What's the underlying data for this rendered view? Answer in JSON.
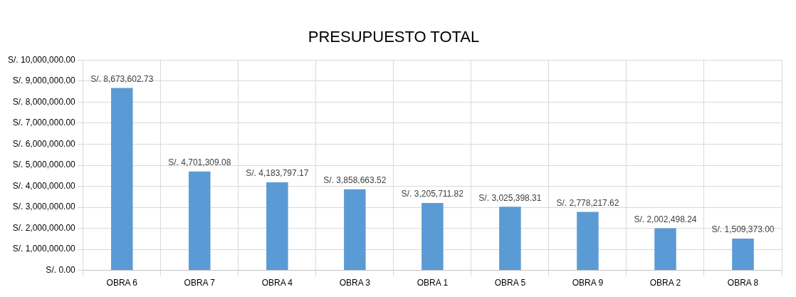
{
  "chart_data": {
    "type": "bar",
    "title": "PRESUPUESTO TOTAL",
    "categories": [
      "OBRA 6",
      "OBRA 7",
      "OBRA 4",
      "OBRA 3",
      "OBRA 1",
      "OBRA 5",
      "OBRA 9",
      "OBRA 2",
      "OBRA 8"
    ],
    "values": [
      8673602.73,
      4701309.08,
      4183797.17,
      3858663.52,
      3205711.82,
      3025398.31,
      2778217.62,
      2002498.24,
      1509373.0
    ],
    "value_labels": [
      "S/. 8,673,602.73",
      "S/. 4,701,309.08",
      "S/. 4,183,797.17",
      "S/. 3,858,663.52",
      "S/. 3,205,711.82",
      "S/. 3,025,398.31",
      "S/. 2,778,217.62",
      "S/. 2,002,498.24",
      "S/. 1,509,373.00"
    ],
    "color": "#5b9bd5",
    "ylim": [
      0,
      10000000
    ],
    "yticks": [
      {
        "value": 0,
        "label": "S/. 0.00"
      },
      {
        "value": 1000000,
        "label": "S/. 1,000,000.00"
      },
      {
        "value": 2000000,
        "label": "S/. 2,000,000.00"
      },
      {
        "value": 3000000,
        "label": "S/. 3,000,000.00"
      },
      {
        "value": 4000000,
        "label": "S/. 4,000,000.00"
      },
      {
        "value": 5000000,
        "label": "S/. 5,000,000.00"
      },
      {
        "value": 6000000,
        "label": "S/. 6,000,000.00"
      },
      {
        "value": 7000000,
        "label": "S/. 7,000,000.00"
      },
      {
        "value": 8000000,
        "label": "S/. 8,000,000.00"
      },
      {
        "value": 9000000,
        "label": "S/. 9,000,000.00"
      },
      {
        "value": 10000000,
        "label": "S/. 10,000,000.00"
      }
    ],
    "grid": true,
    "legend": false
  }
}
